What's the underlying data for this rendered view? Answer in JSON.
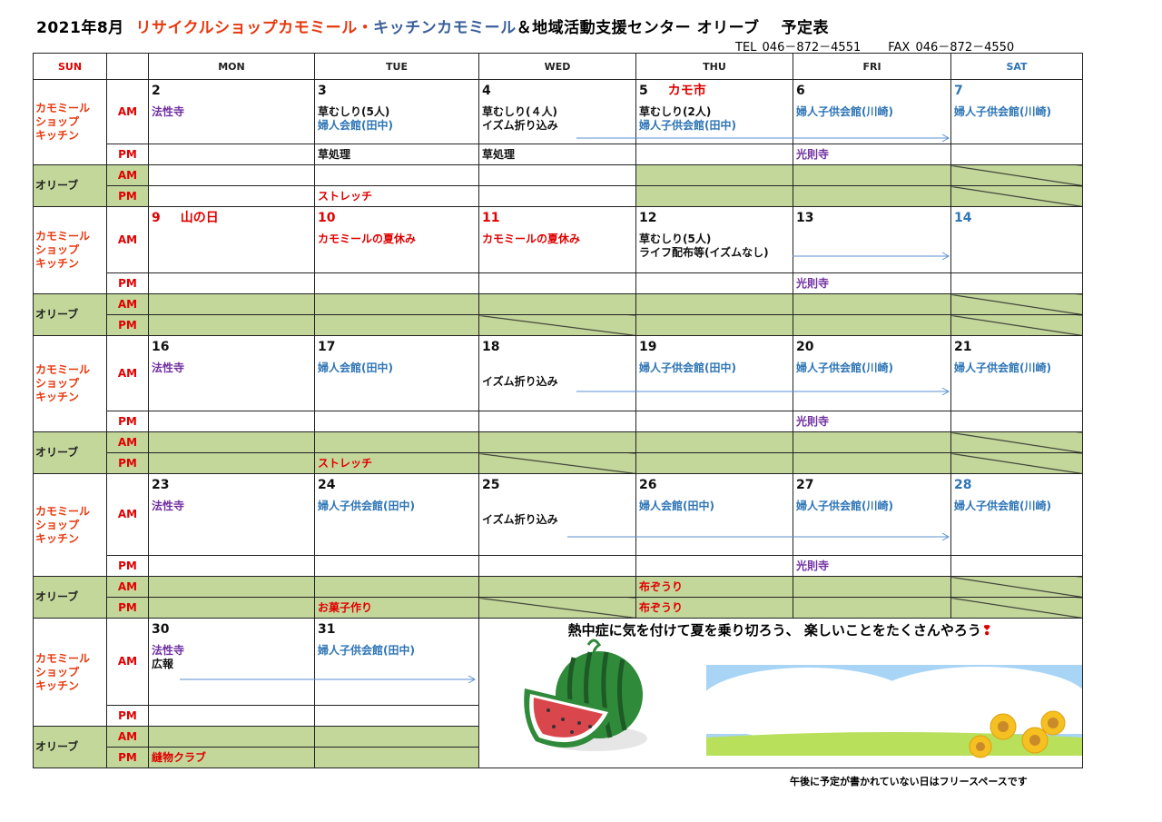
{
  "title": {
    "month": "2021年8月",
    "part_red": "リサイクルショップカモミール・",
    "part_blue": "キッチンカモミール",
    "part_black": "＆地域活動支援センター オリーブ　 予定表"
  },
  "contact": {
    "tel": "TEL 046－872－4551",
    "fax": "FAX 046－872－4550"
  },
  "headers": [
    "SUN",
    "",
    "MON",
    "TUE",
    "WED",
    "THU",
    "FRI",
    "SAT"
  ],
  "header_colors": [
    "#e00000",
    "#222",
    "#222",
    "#222",
    "#222",
    "#222",
    "#222",
    "#2e75b6"
  ],
  "groups": {
    "kitchen": [
      "カモミール",
      "ショップ",
      "キッチン"
    ],
    "olive": "オリーブ"
  },
  "slots": {
    "am": "AM",
    "pm": "PM"
  },
  "colors": {
    "red": "#e00000",
    "purple": "#7030a0",
    "blue": "#2e75b6",
    "black": "#111",
    "green": "#c4d79b",
    "arrow": "#5b8fd0"
  },
  "weeks": [
    {
      "days": [
        {
          "num": "2",
          "am": [
            {
              "t": "法性寺",
              "c": "purple"
            }
          ]
        },
        {
          "num": "3",
          "am": [
            {
              "t": "草むしり(5人)",
              "c": "black"
            },
            {
              "t": "婦人会館(田中)",
              "c": "blue"
            }
          ],
          "pm": [
            {
              "t": "草処理",
              "c": "black"
            }
          ],
          "opm": {
            "t": "ストレッチ",
            "c": "red"
          }
        },
        {
          "num": "4",
          "am": [
            {
              "t": "草むしり(４人)",
              "c": "black"
            },
            {
              "t": "イズム折り込み",
              "c": "black"
            }
          ],
          "pm": [
            {
              "t": "草処理",
              "c": "black"
            }
          ]
        },
        {
          "num": "5",
          "title": "カモ市",
          "am": [
            {
              "t": "草むしり(2人)",
              "c": "black"
            },
            {
              "t": "婦人子供会館(田中)",
              "c": "blue"
            }
          ],
          "green": true
        },
        {
          "num": "6",
          "am": [
            {
              "t": "婦人子供会館(川崎)",
              "c": "blue"
            }
          ],
          "pm": [
            {
              "t": "光則寺",
              "c": "purple"
            }
          ],
          "green": true
        },
        {
          "num": "7",
          "numc": "blue",
          "am": [
            {
              "t": "婦人子供会館(川崎)",
              "c": "blue"
            }
          ],
          "green": true,
          "diag_am": true,
          "diag_pm": true
        }
      ]
    },
    {
      "days": [
        {
          "num": "9",
          "numc": "red",
          "title": "山の日",
          "green": true
        },
        {
          "num": "10",
          "numc": "red",
          "am": [
            {
              "t": "カモミールの夏休み",
              "c": "red"
            }
          ],
          "green": true
        },
        {
          "num": "11",
          "numc": "red",
          "am": [
            {
              "t": "カモミールの夏休み",
              "c": "red"
            }
          ],
          "green": true,
          "diag_pm": true
        },
        {
          "num": "12",
          "am": [
            {
              "t": "草むしり(5人)",
              "c": "black"
            },
            {
              "t": "ライフ配布等(イズムなし)",
              "c": "black"
            }
          ],
          "green": true
        },
        {
          "num": "13",
          "pm": [
            {
              "t": "光則寺",
              "c": "purple"
            }
          ],
          "green": true
        },
        {
          "num": "14",
          "numc": "blue",
          "green": true,
          "diag_am": true,
          "diag_pm": true
        }
      ]
    },
    {
      "days": [
        {
          "num": "16",
          "am": [
            {
              "t": "法性寺",
              "c": "purple"
            }
          ],
          "green": true
        },
        {
          "num": "17",
          "am": [
            {
              "t": "婦人会館(田中)",
              "c": "blue"
            }
          ],
          "opm": {
            "t": "ストレッチ",
            "c": "red"
          },
          "green": true
        },
        {
          "num": "18",
          "am": [
            {
              "t": "",
              "c": "black"
            },
            {
              "t": "イズム折り込み",
              "c": "black"
            }
          ],
          "green": true,
          "diag_pm": true
        },
        {
          "num": "19",
          "am": [
            {
              "t": "婦人子供会館(田中)",
              "c": "blue"
            }
          ],
          "green": true
        },
        {
          "num": "20",
          "am": [
            {
              "t": "婦人子供会館(川崎)",
              "c": "blue"
            }
          ],
          "pm": [
            {
              "t": "光則寺",
              "c": "purple"
            }
          ],
          "green": true
        },
        {
          "num": "21",
          "am": [
            {
              "t": "婦人子供会館(川崎)",
              "c": "blue"
            }
          ],
          "green": true,
          "diag_am": true,
          "diag_pm": true
        }
      ]
    },
    {
      "days": [
        {
          "num": "23",
          "am": [
            {
              "t": "法性寺",
              "c": "purple"
            }
          ],
          "green": true
        },
        {
          "num": "24",
          "am": [
            {
              "t": "婦人子供会館(田中)",
              "c": "blue"
            }
          ],
          "opm": {
            "t": "お菓子作り",
            "c": "red"
          },
          "green": true
        },
        {
          "num": "25",
          "am": [
            {
              "t": "",
              "c": "black"
            },
            {
              "t": "イズム折り込み",
              "c": "black"
            }
          ],
          "green": true,
          "diag_pm": true
        },
        {
          "num": "26",
          "am": [
            {
              "t": "婦人会館(田中)",
              "c": "blue"
            }
          ],
          "oam": {
            "t": "布ぞうり",
            "c": "red"
          },
          "opm": {
            "t": "布ぞうり",
            "c": "red"
          },
          "green": true
        },
        {
          "num": "27",
          "am": [
            {
              "t": "婦人子供会館(川崎)",
              "c": "blue"
            }
          ],
          "pm": [
            {
              "t": "光則寺",
              "c": "purple"
            }
          ],
          "green": true
        },
        {
          "num": "28",
          "numc": "blue",
          "am": [
            {
              "t": "婦人子供会館(川崎)",
              "c": "blue"
            }
          ],
          "green": true,
          "diag_am": true,
          "diag_pm": true
        }
      ]
    },
    {
      "days": [
        {
          "num": "30",
          "am": [
            {
              "t": "法性寺",
              "c": "purple"
            },
            {
              "t": "広報",
              "c": "black"
            }
          ],
          "opm": {
            "t": "縫物クラブ",
            "c": "red"
          },
          "green": true
        },
        {
          "num": "31",
          "am": [
            {
              "t": "婦人子供会館(田中)",
              "c": "blue"
            }
          ],
          "green": true
        }
      ]
    }
  ],
  "banner": "熱中症に気を付けて夏を乗り切ろう、 楽しいことをたくさんやろう",
  "note": "午後に予定が書かれていない日はフリースペースです"
}
